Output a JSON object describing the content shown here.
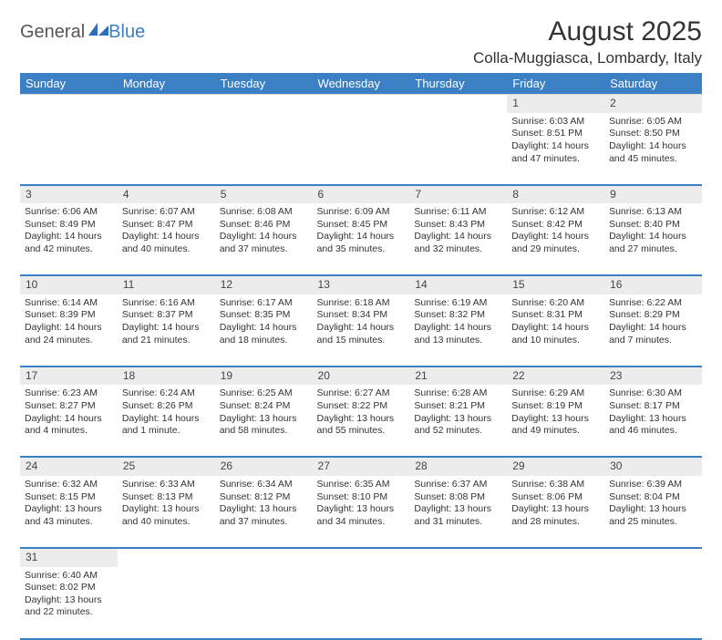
{
  "branding": {
    "general": "General",
    "blue": "Blue",
    "logo_color": "#2f6db8"
  },
  "header": {
    "month_title": "August 2025",
    "location": "Colla-Muggiasca, Lombardy, Italy"
  },
  "colors": {
    "header_bg": "#3b7fc4",
    "header_text": "#ffffff",
    "daynum_bg": "#ececec",
    "rule": "#3b7fc4"
  },
  "day_labels": [
    "Sunday",
    "Monday",
    "Tuesday",
    "Wednesday",
    "Thursday",
    "Friday",
    "Saturday"
  ],
  "weeks": [
    [
      null,
      null,
      null,
      null,
      null,
      {
        "n": "1",
        "sunrise": "Sunrise: 6:03 AM",
        "sunset": "Sunset: 8:51 PM",
        "day1": "Daylight: 14 hours",
        "day2": "and 47 minutes."
      },
      {
        "n": "2",
        "sunrise": "Sunrise: 6:05 AM",
        "sunset": "Sunset: 8:50 PM",
        "day1": "Daylight: 14 hours",
        "day2": "and 45 minutes."
      }
    ],
    [
      {
        "n": "3",
        "sunrise": "Sunrise: 6:06 AM",
        "sunset": "Sunset: 8:49 PM",
        "day1": "Daylight: 14 hours",
        "day2": "and 42 minutes."
      },
      {
        "n": "4",
        "sunrise": "Sunrise: 6:07 AM",
        "sunset": "Sunset: 8:47 PM",
        "day1": "Daylight: 14 hours",
        "day2": "and 40 minutes."
      },
      {
        "n": "5",
        "sunrise": "Sunrise: 6:08 AM",
        "sunset": "Sunset: 8:46 PM",
        "day1": "Daylight: 14 hours",
        "day2": "and 37 minutes."
      },
      {
        "n": "6",
        "sunrise": "Sunrise: 6:09 AM",
        "sunset": "Sunset: 8:45 PM",
        "day1": "Daylight: 14 hours",
        "day2": "and 35 minutes."
      },
      {
        "n": "7",
        "sunrise": "Sunrise: 6:11 AM",
        "sunset": "Sunset: 8:43 PM",
        "day1": "Daylight: 14 hours",
        "day2": "and 32 minutes."
      },
      {
        "n": "8",
        "sunrise": "Sunrise: 6:12 AM",
        "sunset": "Sunset: 8:42 PM",
        "day1": "Daylight: 14 hours",
        "day2": "and 29 minutes."
      },
      {
        "n": "9",
        "sunrise": "Sunrise: 6:13 AM",
        "sunset": "Sunset: 8:40 PM",
        "day1": "Daylight: 14 hours",
        "day2": "and 27 minutes."
      }
    ],
    [
      {
        "n": "10",
        "sunrise": "Sunrise: 6:14 AM",
        "sunset": "Sunset: 8:39 PM",
        "day1": "Daylight: 14 hours",
        "day2": "and 24 minutes."
      },
      {
        "n": "11",
        "sunrise": "Sunrise: 6:16 AM",
        "sunset": "Sunset: 8:37 PM",
        "day1": "Daylight: 14 hours",
        "day2": "and 21 minutes."
      },
      {
        "n": "12",
        "sunrise": "Sunrise: 6:17 AM",
        "sunset": "Sunset: 8:35 PM",
        "day1": "Daylight: 14 hours",
        "day2": "and 18 minutes."
      },
      {
        "n": "13",
        "sunrise": "Sunrise: 6:18 AM",
        "sunset": "Sunset: 8:34 PM",
        "day1": "Daylight: 14 hours",
        "day2": "and 15 minutes."
      },
      {
        "n": "14",
        "sunrise": "Sunrise: 6:19 AM",
        "sunset": "Sunset: 8:32 PM",
        "day1": "Daylight: 14 hours",
        "day2": "and 13 minutes."
      },
      {
        "n": "15",
        "sunrise": "Sunrise: 6:20 AM",
        "sunset": "Sunset: 8:31 PM",
        "day1": "Daylight: 14 hours",
        "day2": "and 10 minutes."
      },
      {
        "n": "16",
        "sunrise": "Sunrise: 6:22 AM",
        "sunset": "Sunset: 8:29 PM",
        "day1": "Daylight: 14 hours",
        "day2": "and 7 minutes."
      }
    ],
    [
      {
        "n": "17",
        "sunrise": "Sunrise: 6:23 AM",
        "sunset": "Sunset: 8:27 PM",
        "day1": "Daylight: 14 hours",
        "day2": "and 4 minutes."
      },
      {
        "n": "18",
        "sunrise": "Sunrise: 6:24 AM",
        "sunset": "Sunset: 8:26 PM",
        "day1": "Daylight: 14 hours",
        "day2": "and 1 minute."
      },
      {
        "n": "19",
        "sunrise": "Sunrise: 6:25 AM",
        "sunset": "Sunset: 8:24 PM",
        "day1": "Daylight: 13 hours",
        "day2": "and 58 minutes."
      },
      {
        "n": "20",
        "sunrise": "Sunrise: 6:27 AM",
        "sunset": "Sunset: 8:22 PM",
        "day1": "Daylight: 13 hours",
        "day2": "and 55 minutes."
      },
      {
        "n": "21",
        "sunrise": "Sunrise: 6:28 AM",
        "sunset": "Sunset: 8:21 PM",
        "day1": "Daylight: 13 hours",
        "day2": "and 52 minutes."
      },
      {
        "n": "22",
        "sunrise": "Sunrise: 6:29 AM",
        "sunset": "Sunset: 8:19 PM",
        "day1": "Daylight: 13 hours",
        "day2": "and 49 minutes."
      },
      {
        "n": "23",
        "sunrise": "Sunrise: 6:30 AM",
        "sunset": "Sunset: 8:17 PM",
        "day1": "Daylight: 13 hours",
        "day2": "and 46 minutes."
      }
    ],
    [
      {
        "n": "24",
        "sunrise": "Sunrise: 6:32 AM",
        "sunset": "Sunset: 8:15 PM",
        "day1": "Daylight: 13 hours",
        "day2": "and 43 minutes."
      },
      {
        "n": "25",
        "sunrise": "Sunrise: 6:33 AM",
        "sunset": "Sunset: 8:13 PM",
        "day1": "Daylight: 13 hours",
        "day2": "and 40 minutes."
      },
      {
        "n": "26",
        "sunrise": "Sunrise: 6:34 AM",
        "sunset": "Sunset: 8:12 PM",
        "day1": "Daylight: 13 hours",
        "day2": "and 37 minutes."
      },
      {
        "n": "27",
        "sunrise": "Sunrise: 6:35 AM",
        "sunset": "Sunset: 8:10 PM",
        "day1": "Daylight: 13 hours",
        "day2": "and 34 minutes."
      },
      {
        "n": "28",
        "sunrise": "Sunrise: 6:37 AM",
        "sunset": "Sunset: 8:08 PM",
        "day1": "Daylight: 13 hours",
        "day2": "and 31 minutes."
      },
      {
        "n": "29",
        "sunrise": "Sunrise: 6:38 AM",
        "sunset": "Sunset: 8:06 PM",
        "day1": "Daylight: 13 hours",
        "day2": "and 28 minutes."
      },
      {
        "n": "30",
        "sunrise": "Sunrise: 6:39 AM",
        "sunset": "Sunset: 8:04 PM",
        "day1": "Daylight: 13 hours",
        "day2": "and 25 minutes."
      }
    ],
    [
      {
        "n": "31",
        "sunrise": "Sunrise: 6:40 AM",
        "sunset": "Sunset: 8:02 PM",
        "day1": "Daylight: 13 hours",
        "day2": "and 22 minutes."
      },
      null,
      null,
      null,
      null,
      null,
      null
    ]
  ]
}
